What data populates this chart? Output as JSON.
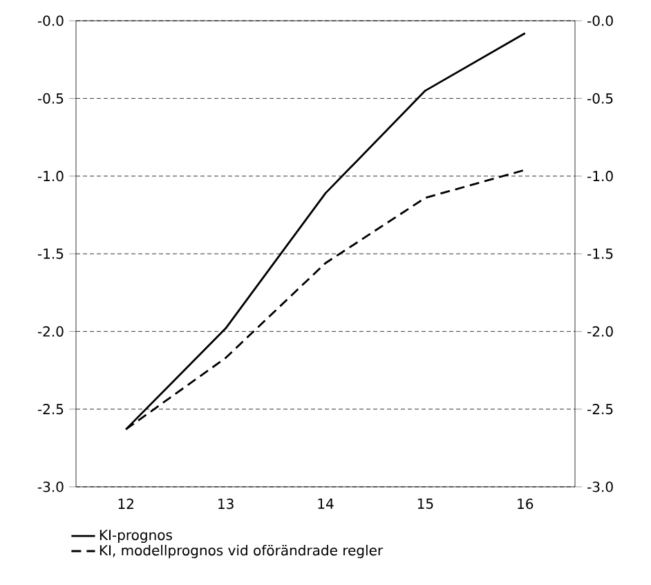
{
  "chart_data": {
    "type": "line",
    "categories": [
      "12",
      "13",
      "14",
      "15",
      "16"
    ],
    "series": [
      {
        "name": "KI-prognos",
        "color": "#000000",
        "line_style": "solid",
        "values": [
          -2.63,
          -1.98,
          -1.11,
          -0.45,
          -0.08
        ]
      },
      {
        "name": "KI, modellprognos vid oförändrade regler",
        "color": "#000000",
        "line_style": "dashed",
        "values": [
          -2.63,
          -2.17,
          -1.56,
          -1.14,
          -0.96
        ]
      }
    ],
    "ylim": [
      -3,
      0
    ],
    "yticks": [
      {
        "value": -3,
        "label": "-3.0"
      },
      {
        "value": -2.5,
        "label": "-2.5"
      },
      {
        "value": -2,
        "label": "-2.0"
      },
      {
        "value": -1.5,
        "label": "-1.5"
      },
      {
        "value": -1,
        "label": "-1.0"
      },
      {
        "value": -0.5,
        "label": "-0.5"
      },
      {
        "value": 0,
        "label": "-0.0"
      }
    ],
    "y2lim": [
      -3,
      0
    ],
    "y2ticks": [
      {
        "value": -3,
        "label": "-3.0"
      },
      {
        "value": -2.5,
        "label": "-2.5"
      },
      {
        "value": -2,
        "label": "-2.0"
      },
      {
        "value": -1.5,
        "label": "-1.5"
      },
      {
        "value": -1,
        "label": "-1.0"
      },
      {
        "value": -0.5,
        "label": "-0.5"
      },
      {
        "value": 0,
        "label": "-0.0"
      }
    ],
    "grid": "y",
    "legend": "bottom left",
    "marker": "none"
  }
}
